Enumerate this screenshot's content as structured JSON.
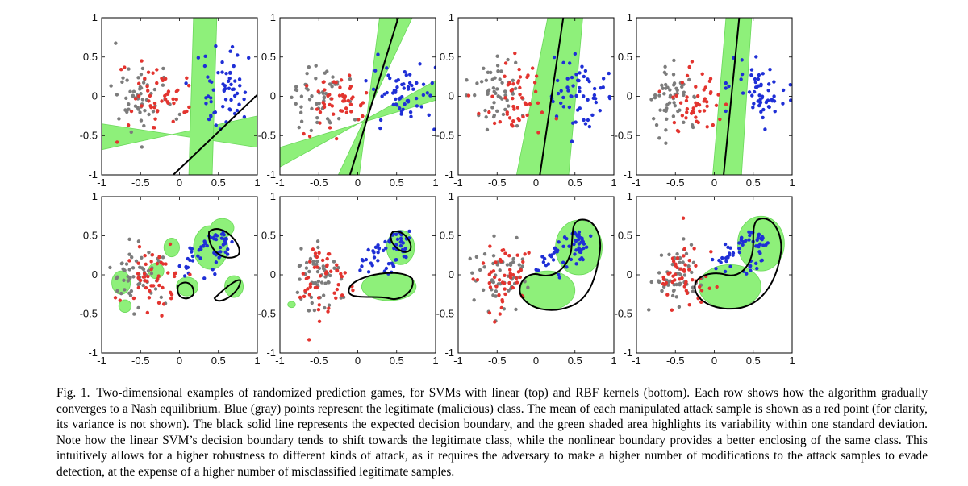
{
  "figure": {
    "axis": {
      "xlim": [
        -1,
        1
      ],
      "ylim": [
        -1,
        1
      ]
    },
    "colors": {
      "legitimate": "#1f2fd6",
      "malicious": "#7c7c7c",
      "attack_mean": "#e3342f",
      "boundary": "#000000",
      "variability": "#8ef07a"
    },
    "panels": [
      {
        "row": "top",
        "kernel": "linear",
        "boundary": [
          [
            -0.08,
            -1.0
          ],
          [
            1.0,
            0.02
          ]
        ],
        "band": [
          [
            [
              -1.0,
              -0.35
            ],
            [
              1.0,
              -0.65
            ],
            [
              1.0,
              -0.25
            ],
            [
              -1.0,
              -0.68
            ]
          ],
          [
            [
              0.18,
              1.0
            ],
            [
              0.48,
              1.0
            ],
            [
              0.42,
              -1.0
            ],
            [
              0.12,
              -1.0
            ]
          ]
        ]
      },
      {
        "row": "top",
        "kernel": "linear",
        "boundary": [
          [
            -0.1,
            -1.0
          ],
          [
            0.52,
            1.0
          ]
        ],
        "band": [
          [
            [
              0.28,
              1.0
            ],
            [
              0.7,
              1.0
            ],
            [
              -0.25,
              -1.0
            ],
            [
              0.02,
              -1.0
            ]
          ],
          [
            [
              -1.0,
              -0.9
            ],
            [
              1.0,
              0.2
            ],
            [
              1.0,
              -0.05
            ],
            [
              -1.0,
              -0.65
            ]
          ]
        ]
      },
      {
        "row": "top",
        "kernel": "linear",
        "boundary": [
          [
            0.05,
            -1.0
          ],
          [
            0.35,
            1.0
          ]
        ],
        "band": [
          [
            [
              0.15,
              1.0
            ],
            [
              0.6,
              1.0
            ],
            [
              0.42,
              -1.0
            ],
            [
              -0.25,
              -1.0
            ]
          ]
        ]
      },
      {
        "row": "top",
        "kernel": "linear",
        "boundary": [
          [
            0.12,
            -1.0
          ],
          [
            0.32,
            1.0
          ]
        ],
        "band": [
          [
            [
              0.15,
              1.0
            ],
            [
              0.48,
              1.0
            ],
            [
              0.35,
              -1.0
            ],
            [
              -0.02,
              -1.0
            ]
          ]
        ]
      },
      {
        "row": "bottom",
        "kernel": "rbf"
      },
      {
        "row": "bottom",
        "kernel": "rbf"
      },
      {
        "row": "bottom",
        "kernel": "rbf"
      },
      {
        "row": "bottom",
        "kernel": "rbf"
      }
    ]
  },
  "caption": {
    "label": "Fig. 1.",
    "text": "Two-dimensional examples of randomized prediction games, for SVMs with linear (top) and RBF kernels (bottom). Each row shows how the algorithm gradually converges to a Nash equilibrium. Blue (gray) points represent the legitimate (malicious) class. The mean of each manipulated attack sample is shown as a red point (for clarity, its variance is not shown). The black solid line represents the expected decision boundary, and the green shaded area highlights its variability within one standard deviation. Note how the linear SVM’s decision boundary tends to shift towards the legitimate class, while the nonlinear boundary provides a better enclosing of the same class. This intuitively allows for a higher robustness to different kinds of attack, as it requires the adversary to make a higher number of modifications to the attack samples to evade detection, at the expense of a higher number of misclassified legitimate samples."
  }
}
